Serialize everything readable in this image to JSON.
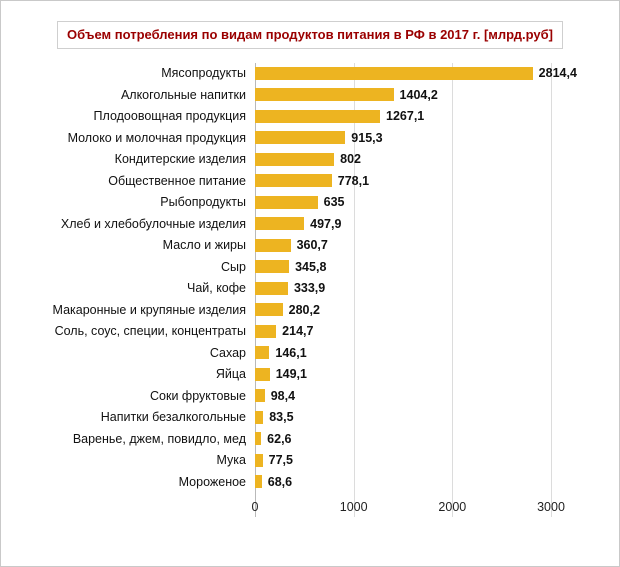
{
  "chart_data": {
    "type": "bar",
    "orientation": "horizontal",
    "title": "Объем потребления по видам продуктов питания в РФ в 2017 г. [млрд.руб]",
    "categories": [
      "Мясопродукты",
      "Алкогольные напитки",
      "Плодоовощная продукция",
      "Молоко и молочная продукция",
      "Кондитерские изделия",
      "Общественное питание",
      "Рыбопродукты",
      "Хлеб и хлебобулочные изделия",
      "Масло и жиры",
      "Сыр",
      "Чай, кофе",
      "Макаронные и крупяные изделия",
      "Соль, соус, специи, концентраты",
      "Сахар",
      "Яйца",
      "Соки фруктовые",
      "Напитки безалкогольные",
      "Варенье, джем, повидло, мед",
      "Мука",
      "Мороженое"
    ],
    "values": [
      2814.4,
      1404.2,
      1267.1,
      915.3,
      802,
      778.1,
      635,
      497.9,
      360.7,
      345.8,
      333.9,
      280.2,
      214.7,
      146.1,
      149.1,
      98.4,
      83.5,
      62.6,
      77.5,
      68.6
    ],
    "value_labels": [
      "2814,4",
      "1404,2",
      "1267,1",
      "915,3",
      "802",
      "778,1",
      "635",
      "497,9",
      "360,7",
      "345,8",
      "333,9",
      "280,2",
      "214,7",
      "146,1",
      "149,1",
      "98,4",
      "83,5",
      "62,6",
      "77,5",
      "68,6"
    ],
    "x_ticks": [
      0,
      1000,
      2000,
      3000
    ],
    "x_tick_labels": [
      "0",
      "1000",
      "2000",
      "3000"
    ],
    "xlim": [
      0,
      3000
    ],
    "grid": true,
    "legend": "none",
    "bar_color": "#edb421",
    "title_color": "#9a0000"
  }
}
